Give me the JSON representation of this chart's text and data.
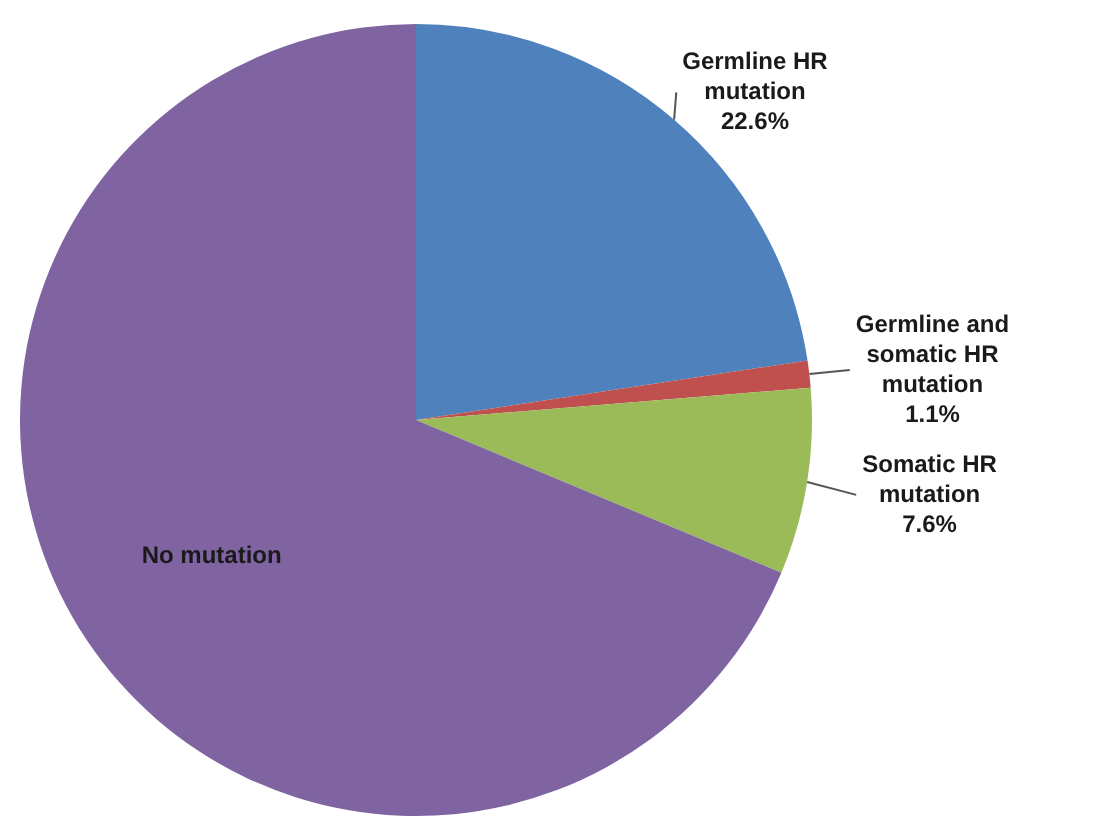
{
  "chart_data": {
    "type": "pie",
    "categories": [
      "Germline HR mutation",
      "Germline and somatic HR mutation",
      "Somatic HR mutation",
      "No mutation"
    ],
    "values": [
      22.6,
      1.1,
      7.6,
      68.7
    ],
    "colors": [
      "#4f81bd",
      "#c0504d",
      "#9bbb59",
      "#8064a2"
    ],
    "value_labels": [
      "22.6%",
      "1.1%",
      "7.6%",
      null
    ],
    "legend": false
  }
}
